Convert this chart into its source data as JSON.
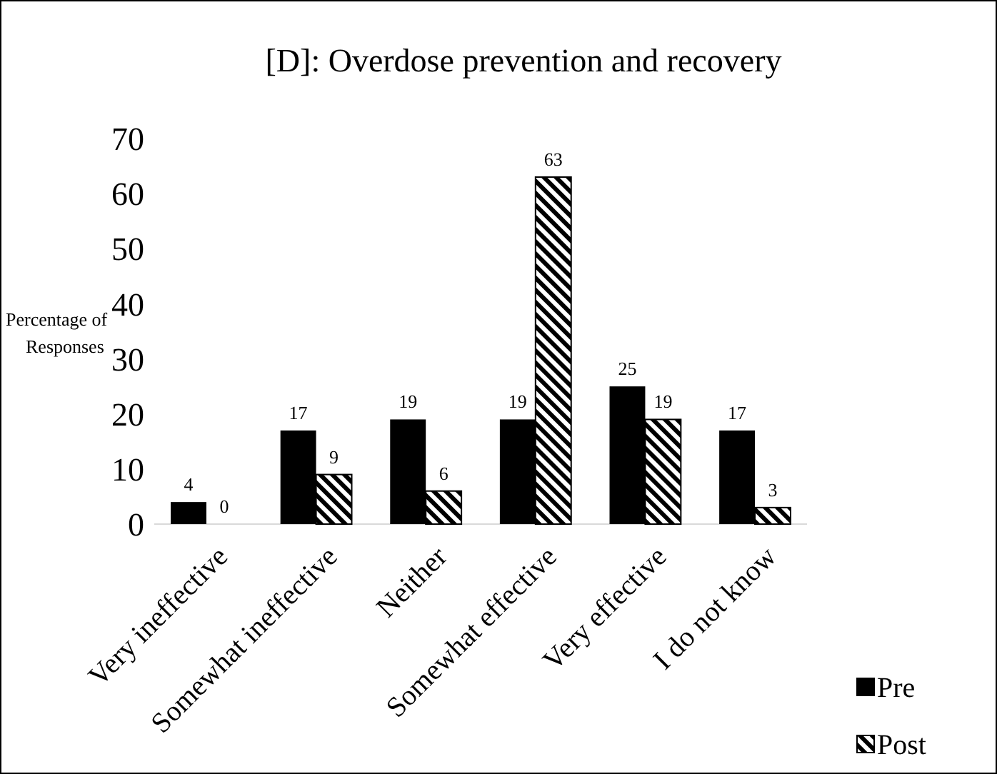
{
  "chart_data": {
    "type": "bar",
    "title": "[D]: Overdose prevention and recovery",
    "ylabel": "Percentage of Responses",
    "categories": [
      "Very ineffective",
      "Somewhat ineffective",
      "Neither",
      "Somewhat effective",
      "Very effective",
      "I do not know"
    ],
    "series": [
      {
        "name": "Pre",
        "color": "#000000",
        "values": [
          4,
          17,
          19,
          19,
          25,
          17
        ]
      },
      {
        "name": "Post",
        "color": "#000000",
        "values": [
          0,
          9,
          6,
          63,
          19,
          3
        ]
      }
    ],
    "ylim": [
      0,
      70
    ],
    "yticks": [
      0,
      10,
      20,
      30,
      40,
      50,
      60,
      70
    ],
    "data_labels": true,
    "legend": "bottom right"
  }
}
